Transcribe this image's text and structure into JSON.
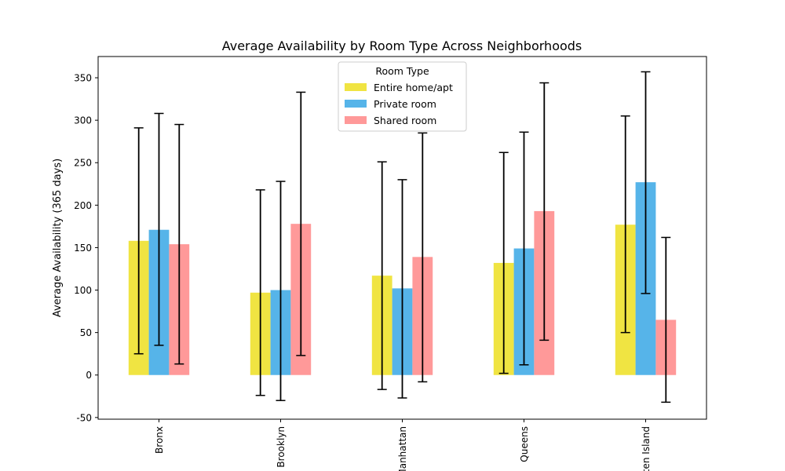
{
  "chart_data": {
    "type": "bar",
    "title": "Average Availability by Room Type Across Neighborhoods",
    "xlabel": "",
    "ylabel": "Average Availability (365 days)",
    "categories": [
      "Bronx",
      "Brooklyn",
      "Manhattan",
      "Queens",
      "Staten Island"
    ],
    "ylim": [
      -52,
      375
    ],
    "yticks": [
      -50,
      0,
      50,
      100,
      150,
      200,
      250,
      300,
      350
    ],
    "legend": {
      "title": "Room Type",
      "placement": "top-center"
    },
    "series": [
      {
        "name": "Entire home/apt",
        "color": "#f0e442",
        "values": [
          158,
          97,
          117,
          132,
          177
        ],
        "err_low": [
          25,
          -24,
          -17,
          2,
          50
        ],
        "err_high": [
          291,
          218,
          251,
          262,
          305
        ]
      },
      {
        "name": "Private room",
        "color": "#56b4e9",
        "values": [
          171,
          100,
          102,
          149,
          227
        ],
        "err_low": [
          35,
          -30,
          -27,
          12,
          96
        ],
        "err_high": [
          308,
          228,
          230,
          286,
          357
        ]
      },
      {
        "name": "Shared room",
        "color": "#ff9999",
        "values": [
          154,
          178,
          139,
          193,
          65
        ],
        "err_low": [
          13,
          23,
          -8,
          41,
          -32
        ],
        "err_high": [
          295,
          333,
          285,
          344,
          162
        ]
      }
    ],
    "grid": false
  }
}
